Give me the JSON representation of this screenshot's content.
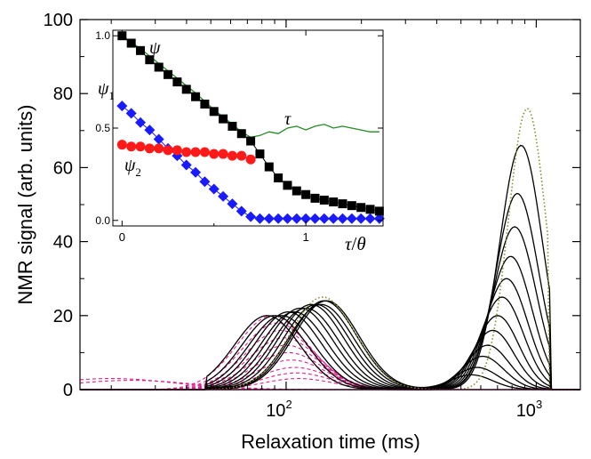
{
  "chart_data": [
    {
      "type": "line",
      "title": "",
      "xlabel": "Relaxation time (ms)",
      "ylabel": "NMR signal (arb. units)",
      "xscale": "log",
      "xlim": [
        15,
        1500
      ],
      "ylim": [
        0,
        100
      ],
      "x_ticks": [
        100,
        1000
      ],
      "x_tick_labels": [
        {
          "base": "10",
          "exp": "2"
        },
        {
          "base": "10",
          "exp": "3"
        }
      ],
      "y_ticks": [
        0,
        20,
        40,
        60,
        80,
        100
      ],
      "y_tick_labels": [
        "0",
        "20",
        "40",
        "60",
        "80",
        "100"
      ],
      "grid": false,
      "colors": {
        "black": "#000000",
        "magenta": "#e0218a",
        "olive": "#8b8b2a",
        "axis": "#000000"
      },
      "black_curves": [
        {
          "peak1": {
            "x": 84,
            "y": 20
          },
          "peak2": {
            "x": 870,
            "y": 66
          }
        },
        {
          "peak1": {
            "x": 90,
            "y": 20
          },
          "peak2": {
            "x": 840,
            "y": 53
          }
        },
        {
          "peak1": {
            "x": 96,
            "y": 20
          },
          "peak2": {
            "x": 820,
            "y": 44
          }
        },
        {
          "peak1": {
            "x": 102,
            "y": 21
          },
          "peak2": {
            "x": 790,
            "y": 36
          }
        },
        {
          "peak1": {
            "x": 108,
            "y": 21
          },
          "peak2": {
            "x": 760,
            "y": 30
          }
        },
        {
          "peak1": {
            "x": 114,
            "y": 22
          },
          "peak2": {
            "x": 730,
            "y": 25
          }
        },
        {
          "peak1": {
            "x": 120,
            "y": 22
          },
          "peak2": {
            "x": 700,
            "y": 20
          }
        },
        {
          "peak1": {
            "x": 126,
            "y": 23
          },
          "peak2": {
            "x": 670,
            "y": 16
          }
        },
        {
          "peak1": {
            "x": 132,
            "y": 23
          },
          "peak2": {
            "x": 640,
            "y": 12
          }
        },
        {
          "peak1": {
            "x": 138,
            "y": 23
          },
          "peak2": {
            "x": 610,
            "y": 9
          }
        },
        {
          "peak1": {
            "x": 142,
            "y": 24
          },
          "peak2": {
            "x": 580,
            "y": 6
          }
        },
        {
          "peak1": {
            "x": 145,
            "y": 24
          },
          "peak2": {
            "x": 550,
            "y": 4
          }
        }
      ],
      "magenta_curves": [
        {
          "peak": {
            "x": 88,
            "y": 20
          }
        },
        {
          "peak": {
            "x": 92,
            "y": 18
          }
        },
        {
          "peak": {
            "x": 95,
            "y": 16
          }
        },
        {
          "peak": {
            "x": 98,
            "y": 14
          }
        },
        {
          "peak": {
            "x": 100,
            "y": 12
          }
        },
        {
          "peak": {
            "x": 102,
            "y": 10
          }
        },
        {
          "peak": {
            "x": 105,
            "y": 8
          }
        },
        {
          "peak": {
            "x": 108,
            "y": 6
          }
        },
        {
          "peak": {
            "x": 110,
            "y": 4.5
          }
        },
        {
          "peak": {
            "x": 112,
            "y": 3
          }
        },
        {
          "peak": {
            "x": 20,
            "y": 3
          }
        },
        {
          "peak": {
            "x": 24,
            "y": 2.5
          }
        }
      ],
      "dotted_envelope": {
        "peak1": {
          "x": 140,
          "y": 25
        },
        "peak2": {
          "x": 920,
          "y": 76
        }
      }
    },
    {
      "type": "line",
      "xlabel_parts": {
        "num": "τ",
        "slash": "/",
        "den": "θ"
      },
      "xlim": [
        -0.05,
        1.42
      ],
      "ylim": [
        -0.03,
        1.03
      ],
      "x_ticks": [
        0,
        1
      ],
      "x_tick_labels": [
        "0",
        "1"
      ],
      "y_ticks": [
        0.0,
        0.5,
        1.0
      ],
      "y_tick_labels": [
        "0.0",
        "0.5",
        "1.0"
      ],
      "labels": {
        "psi": {
          "sym": "ψ",
          "sub": ""
        },
        "psi1": {
          "sym": "ψ",
          "sub": "1"
        },
        "psi2": {
          "sym": "ψ",
          "sub": "2"
        },
        "tau": {
          "sym": "τ",
          "sub": ""
        }
      },
      "series": [
        {
          "name": "ψ",
          "marker": "square",
          "color": "#000000",
          "x": [
            0,
            0.05,
            0.1,
            0.15,
            0.2,
            0.25,
            0.3,
            0.35,
            0.4,
            0.45,
            0.5,
            0.55,
            0.6,
            0.65,
            0.7,
            0.75,
            0.8,
            0.85,
            0.9,
            0.95,
            1.0,
            1.05,
            1.1,
            1.15,
            1.2,
            1.25,
            1.3,
            1.35,
            1.4
          ],
          "y": [
            1.0,
            0.96,
            0.92,
            0.87,
            0.83,
            0.79,
            0.75,
            0.71,
            0.67,
            0.63,
            0.59,
            0.55,
            0.51,
            0.47,
            0.43,
            0.36,
            0.29,
            0.23,
            0.19,
            0.16,
            0.14,
            0.12,
            0.11,
            0.1,
            0.09,
            0.08,
            0.07,
            0.06,
            0.05
          ]
        },
        {
          "name": "ψ1",
          "marker": "diamond",
          "color": "#1a1aff",
          "x": [
            0,
            0.05,
            0.1,
            0.15,
            0.2,
            0.25,
            0.3,
            0.35,
            0.4,
            0.45,
            0.5,
            0.55,
            0.6,
            0.65,
            0.7,
            0.75,
            0.8,
            0.85,
            0.9,
            0.95,
            1.0,
            1.05,
            1.1,
            1.15,
            1.2,
            1.25,
            1.3,
            1.35,
            1.4
          ],
          "y": [
            0.62,
            0.58,
            0.53,
            0.49,
            0.44,
            0.39,
            0.35,
            0.3,
            0.26,
            0.21,
            0.17,
            0.13,
            0.09,
            0.05,
            0.02,
            0.01,
            0.01,
            0.01,
            0.01,
            0.01,
            0.01,
            0.01,
            0.01,
            0.01,
            0.01,
            0.01,
            0.01,
            0.01,
            0.01
          ]
        },
        {
          "name": "ψ2",
          "marker": "circle",
          "color": "#ff1a1a",
          "x": [
            0,
            0.05,
            0.1,
            0.15,
            0.2,
            0.25,
            0.3,
            0.35,
            0.4,
            0.45,
            0.5,
            0.55,
            0.6,
            0.65,
            0.7
          ],
          "y": [
            0.41,
            0.4,
            0.4,
            0.39,
            0.39,
            0.38,
            0.38,
            0.37,
            0.37,
            0.37,
            0.36,
            0.36,
            0.35,
            0.35,
            0.33
          ]
        },
        {
          "name": "τ",
          "marker": "none",
          "color": "#228b22",
          "x": [
            0,
            0.1,
            0.2,
            0.3,
            0.4,
            0.5,
            0.6,
            0.65,
            0.7,
            0.75,
            0.8,
            0.85,
            0.9,
            0.95,
            1.0,
            1.05,
            1.1,
            1.15,
            1.2,
            1.25,
            1.3,
            1.35,
            1.4
          ],
          "y": [
            1.0,
            0.93,
            0.85,
            0.77,
            0.69,
            0.6,
            0.52,
            0.48,
            0.45,
            0.46,
            0.48,
            0.47,
            0.5,
            0.51,
            0.49,
            0.51,
            0.52,
            0.5,
            0.51,
            0.5,
            0.49,
            0.48,
            0.48
          ]
        }
      ]
    }
  ]
}
